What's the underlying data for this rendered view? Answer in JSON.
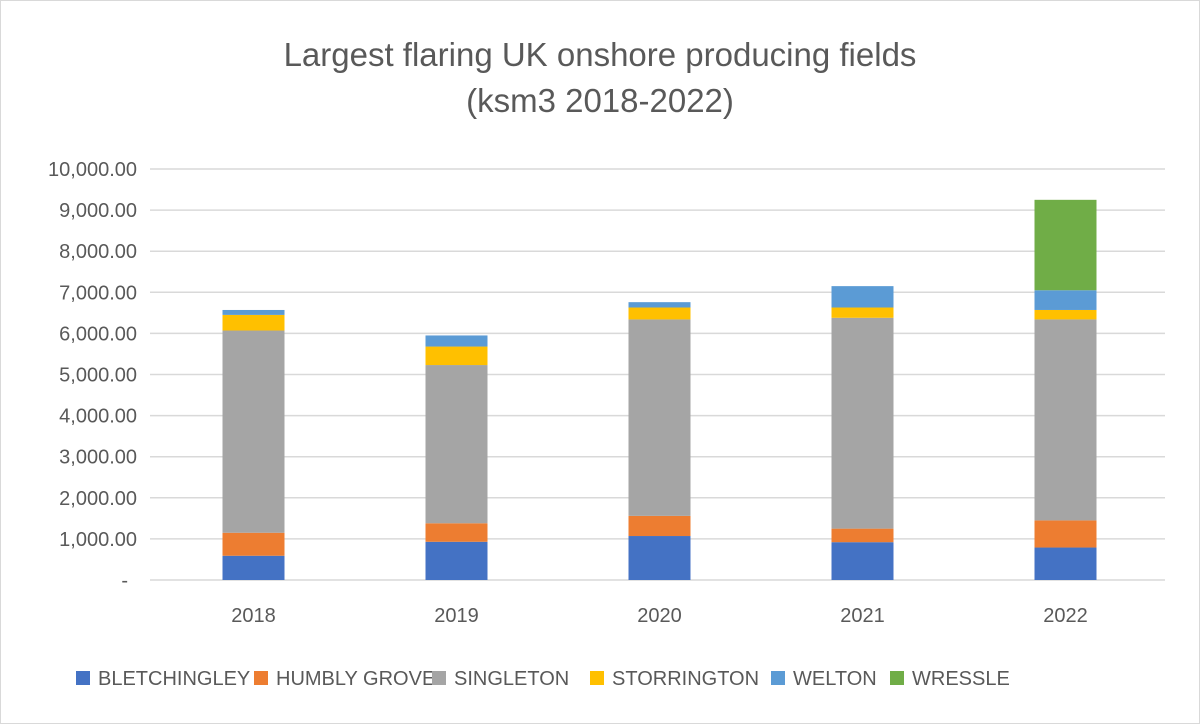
{
  "chart_data": {
    "type": "bar",
    "stacked": true,
    "title": [
      "Largest flaring UK onshore producing fields",
      "(ksm3 2018-2022)"
    ],
    "xlabel": "",
    "ylabel": "",
    "ylim": [
      0,
      10000
    ],
    "y_ticks": [
      0,
      1000,
      2000,
      3000,
      4000,
      5000,
      6000,
      7000,
      8000,
      9000,
      10000
    ],
    "y_tick_labels": [
      "-",
      "1,000.00",
      "2,000.00",
      "3,000.00",
      "4,000.00",
      "5,000.00",
      "6,000.00",
      "7,000.00",
      "8,000.00",
      "9,000.00",
      "10,000.00"
    ],
    "categories": [
      "2018",
      "2019",
      "2020",
      "2021",
      "2022"
    ],
    "grid": true,
    "legend_position": "bottom",
    "series": [
      {
        "name": "BLETCHINGLEY",
        "color": "#4472c4",
        "values": [
          590,
          930,
          1070,
          920,
          790
        ]
      },
      {
        "name": "HUMBLY GROVE",
        "color": "#ed7d31",
        "values": [
          560,
          450,
          490,
          330,
          660
        ]
      },
      {
        "name": "SINGLETON",
        "color": "#a5a5a5",
        "values": [
          4920,
          3850,
          4780,
          5130,
          4890
        ]
      },
      {
        "name": "STORRINGTON",
        "color": "#ffc000",
        "values": [
          380,
          450,
          290,
          250,
          230
        ]
      },
      {
        "name": "WELTON",
        "color": "#5b9bd5",
        "values": [
          120,
          270,
          130,
          520,
          480
        ]
      },
      {
        "name": "WRESSLE",
        "color": "#70ad47",
        "values": [
          0,
          0,
          0,
          0,
          2200
        ]
      }
    ]
  }
}
